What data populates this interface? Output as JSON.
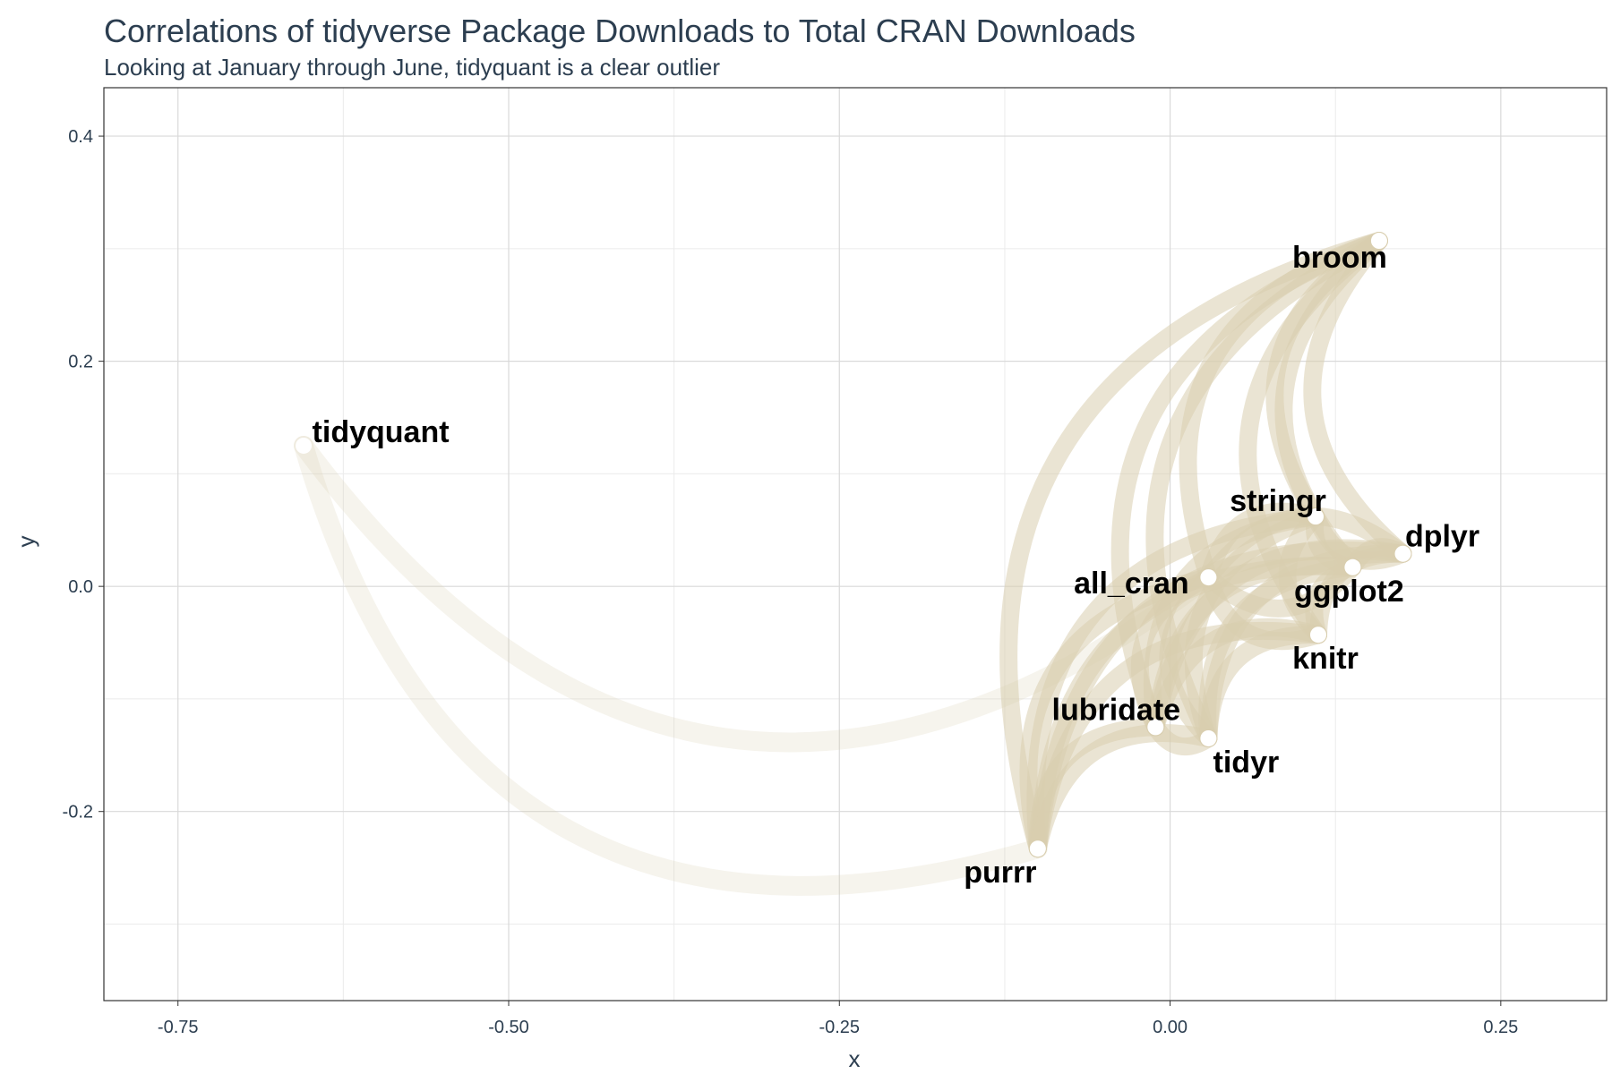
{
  "chart_data": {
    "type": "scatter",
    "subtype": "network",
    "title": "Correlations of tidyverse Package Downloads to Total CRAN Downloads",
    "subtitle": "Looking at January through June, tidyquant is a clear outlier",
    "xlabel": "x",
    "ylabel": "y",
    "xlim": [
      -0.806,
      0.33
    ],
    "ylim": [
      -0.368,
      0.443
    ],
    "xticks": [
      -0.75,
      -0.5,
      -0.25,
      0.0,
      0.25
    ],
    "xtick_labels": [
      "-0.75",
      "-0.50",
      "-0.25",
      "0.00",
      "0.25"
    ],
    "yticks": [
      -0.2,
      0.0,
      0.2,
      0.4
    ],
    "ytick_labels": [
      "-0.2",
      "0.0",
      "0.2",
      "0.4"
    ],
    "grid": true,
    "nodes": [
      {
        "name": "broom",
        "x": 0.158,
        "y": 0.307
      },
      {
        "name": "tidyquant",
        "x": -0.655,
        "y": 0.125
      },
      {
        "name": "stringr",
        "x": 0.11,
        "y": 0.062
      },
      {
        "name": "dplyr",
        "x": 0.176,
        "y": 0.029
      },
      {
        "name": "all_cran",
        "x": 0.029,
        "y": 0.008
      },
      {
        "name": "ggplot2",
        "x": 0.138,
        "y": 0.017
      },
      {
        "name": "knitr",
        "x": 0.112,
        "y": -0.043
      },
      {
        "name": "lubridate",
        "x": -0.011,
        "y": -0.125
      },
      {
        "name": "tidyr",
        "x": 0.029,
        "y": -0.135
      },
      {
        "name": "purrr",
        "x": -0.1,
        "y": -0.233
      }
    ],
    "edge_color": "#d8cdae"
  }
}
